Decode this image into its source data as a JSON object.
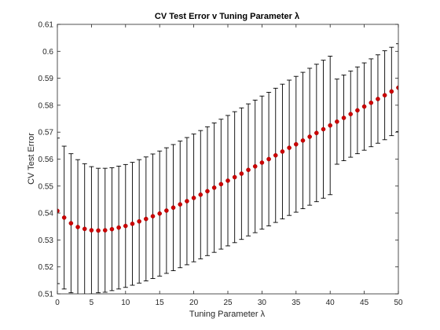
{
  "chart_data": {
    "type": "scatter",
    "title": "CV Test Error v Tuning Parameter λ",
    "xlabel": "Tuning Parameter λ",
    "ylabel": "CV Test Error",
    "xlim": [
      0,
      50
    ],
    "ylim": [
      0.51,
      0.61
    ],
    "xticks": [
      "0",
      "5",
      "10",
      "15",
      "20",
      "25",
      "30",
      "35",
      "40",
      "45",
      "50"
    ],
    "yticks": [
      "0.51",
      "0.52",
      "0.53",
      "0.54",
      "0.55",
      "0.56",
      "0.57",
      "0.58",
      "0.59",
      "0.6",
      "0.61"
    ],
    "grid": false,
    "marker_color": "#cc0000",
    "errorbar_color": "#000000",
    "series": [
      {
        "x": [
          0,
          1,
          2,
          3,
          4,
          5,
          6,
          7,
          8,
          9,
          10,
          11,
          12,
          13,
          14,
          15,
          16,
          17,
          18,
          19,
          20,
          21,
          22,
          23,
          24,
          25,
          26,
          27,
          28,
          29,
          30,
          31,
          32,
          33,
          34,
          35,
          36,
          37,
          38,
          39,
          40,
          41,
          42,
          43,
          44,
          45,
          46,
          47,
          48,
          49,
          50
        ],
        "y": [
          0.5408,
          0.5383,
          0.5362,
          0.5348,
          0.5341,
          0.5336,
          0.5335,
          0.5336,
          0.534,
          0.5346,
          0.5352,
          0.536,
          0.5369,
          0.5378,
          0.5388,
          0.5398,
          0.5409,
          0.542,
          0.5432,
          0.5444,
          0.5456,
          0.5468,
          0.5481,
          0.5494,
          0.5507,
          0.552,
          0.5533,
          0.5546,
          0.556,
          0.5573,
          0.5587,
          0.56,
          0.5614,
          0.5628,
          0.5642,
          0.5655,
          0.5669,
          0.5683,
          0.5697,
          0.5711,
          0.5725,
          0.5739,
          0.5753,
          0.5767,
          0.5781,
          0.5795,
          0.5809,
          0.5823,
          0.5837,
          0.5851,
          0.5865
        ],
        "err": [
          0.027,
          0.0265,
          0.0258,
          0.025,
          0.0242,
          0.0236,
          0.0231,
          0.023,
          0.0228,
          0.0228,
          0.0228,
          0.0228,
          0.0229,
          0.023,
          0.0231,
          0.0232,
          0.0233,
          0.0234,
          0.0235,
          0.0236,
          0.0237,
          0.0238,
          0.0239,
          0.024,
          0.0241,
          0.0242,
          0.0243,
          0.0244,
          0.0245,
          0.0246,
          0.0247,
          0.0248,
          0.0249,
          0.025,
          0.0251,
          0.0252,
          0.0253,
          0.0254,
          0.0255,
          0.0256,
          0.0257,
          0.0158,
          0.0159,
          0.016,
          0.0161,
          0.0162,
          0.0163,
          0.0164,
          0.0165,
          0.0164,
          0.0163
        ]
      }
    ]
  }
}
